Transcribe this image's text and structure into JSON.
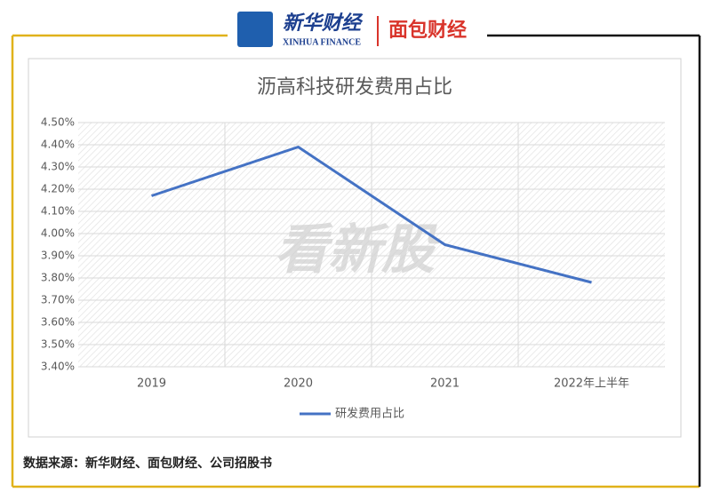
{
  "header": {
    "brand": "新华财经",
    "brand_en": "XINHUA FINANCE",
    "partner": "面包财经"
  },
  "watermark": "看新股",
  "chart_data": {
    "type": "line",
    "title": "沥高科技研发费用占比",
    "categories": [
      "2019",
      "2020",
      "2021",
      "2022年上半年"
    ],
    "series": [
      {
        "name": "研发费用占比",
        "color": "#4472c4",
        "values": [
          4.17,
          4.39,
          3.95,
          3.78
        ]
      }
    ],
    "ylim": [
      3.4,
      4.5
    ],
    "yticks": [
      {
        "value": 3.4,
        "label": "3.40%"
      },
      {
        "value": 3.5,
        "label": "3.50%"
      },
      {
        "value": 3.6,
        "label": "3.60%"
      },
      {
        "value": 3.7,
        "label": "3.70%"
      },
      {
        "value": 3.8,
        "label": "3.80%"
      },
      {
        "value": 3.9,
        "label": "3.90%"
      },
      {
        "value": 4.0,
        "label": "4.00%"
      },
      {
        "value": 4.1,
        "label": "4.10%"
      },
      {
        "value": 4.2,
        "label": "4.20%"
      },
      {
        "value": 4.3,
        "label": "4.30%"
      },
      {
        "value": 4.4,
        "label": "4.40%"
      },
      {
        "value": 4.5,
        "label": "4.50%"
      }
    ],
    "grid": true,
    "legend": "bottom",
    "source": "数据来源：新华财经、面包财经、公司招股书"
  }
}
